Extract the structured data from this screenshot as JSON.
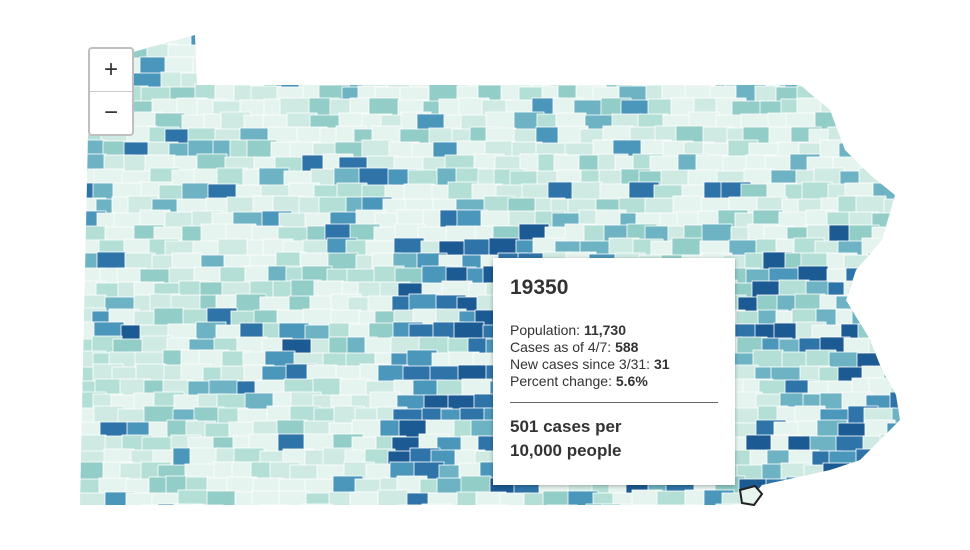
{
  "zoom_controls": {
    "zoom_in": "+",
    "zoom_out": "−"
  },
  "tooltip": {
    "title": "19350",
    "lines": [
      {
        "label": "Population:",
        "value": "11,730"
      },
      {
        "label": "Cases as of 4/7:",
        "value": "588"
      },
      {
        "label": "New cases since 3/31:",
        "value": "31"
      },
      {
        "label": "Percent change:",
        "value": "5.6%"
      }
    ],
    "summary_lines": [
      "501 cases per",
      "10,000 people"
    ]
  }
}
